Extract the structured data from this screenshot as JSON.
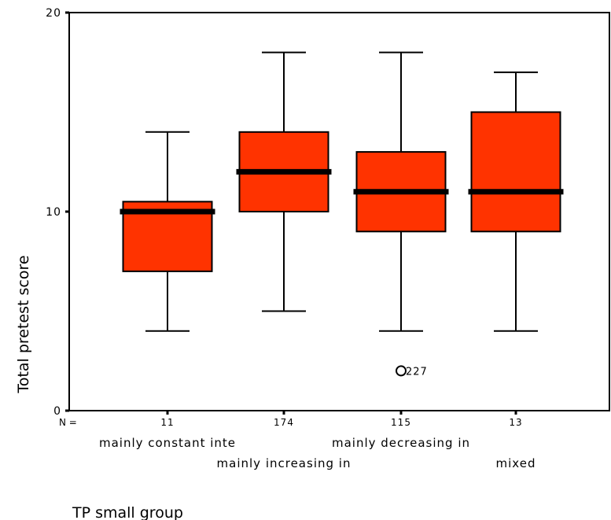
{
  "chart_data": {
    "type": "boxplot",
    "ylabel": "Total pretest score",
    "xlabel": "TP small group",
    "ylim": [
      0,
      20
    ],
    "y_ticks": [
      0,
      10,
      20
    ],
    "n_prefix": "N =",
    "categories": [
      "mainly constant inte",
      "mainly increasing in",
      "mainly decreasing in",
      "mixed"
    ],
    "n": [
      "11",
      "174",
      "115",
      "13"
    ],
    "boxes": [
      {
        "min": 4,
        "q1": 7,
        "median": 10,
        "q3": 10.5,
        "max": 14
      },
      {
        "min": 5,
        "q1": 10,
        "median": 12,
        "q3": 14,
        "max": 18
      },
      {
        "min": 4,
        "q1": 9,
        "median": 11,
        "q3": 13,
        "max": 18
      },
      {
        "min": 4,
        "q1": 9,
        "median": 11,
        "q3": 15,
        "max": 17
      }
    ],
    "outliers": [
      {
        "category_index": 2,
        "value": 2,
        "label": "227"
      }
    ],
    "box_color": "#ff3300",
    "median_color": "#000000"
  }
}
